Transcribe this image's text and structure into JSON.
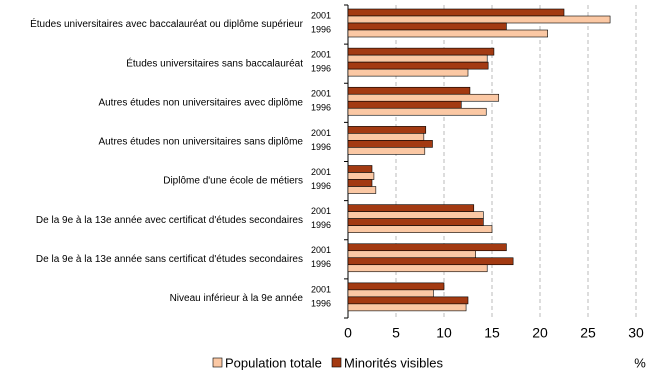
{
  "chart_data": {
    "type": "bar",
    "orientation": "horizontal",
    "categories": [
      "Études universitaires avec baccalauréat ou diplôme supérieur",
      "Études universitaires sans baccalauréat",
      "Autres études non universitaires avec diplôme",
      "Autres études non universitaires sans diplôme",
      "Diplôme d'une école de métiers",
      "De la 9e à la 13e année avec certificat d'études secondaires",
      "De la 9e à la 13e année sans certificat d'études secondaires",
      "Niveau inférieur à la 9e année"
    ],
    "subcategories": [
      "2001",
      "1996"
    ],
    "series": [
      {
        "name": "Population totale",
        "color": "#fbc8a4",
        "values": [
          [
            27.3,
            20.8
          ],
          [
            14.5,
            12.5
          ],
          [
            15.7,
            14.4
          ],
          [
            7.9,
            8.0
          ],
          [
            2.7,
            2.9
          ],
          [
            14.1,
            15.0
          ],
          [
            13.3,
            14.5
          ],
          [
            8.9,
            12.3
          ]
        ]
      },
      {
        "name": "Minorités visibles",
        "color": "#a33a12",
        "values": [
          [
            22.5,
            16.5
          ],
          [
            15.2,
            14.6
          ],
          [
            12.7,
            11.8
          ],
          [
            8.1,
            8.8
          ],
          [
            2.5,
            2.5
          ],
          [
            13.1,
            14.1
          ],
          [
            16.5,
            17.2
          ],
          [
            10.0,
            12.5
          ]
        ]
      }
    ],
    "xlim": [
      0,
      30
    ],
    "xticks": [
      0,
      5,
      10,
      15,
      20,
      25,
      30
    ],
    "xlabel": "%",
    "grid": true
  }
}
